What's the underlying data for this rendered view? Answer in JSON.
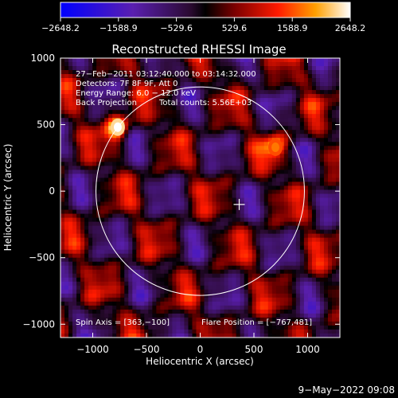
{
  "chart_data": {
    "type": "heatmap",
    "title": "Reconstructed RHESSI Image",
    "xlabel": "Heliocentric X (arcsec)",
    "ylabel": "Heliocentric Y (arcsec)",
    "xlim": [
      -1300,
      1300
    ],
    "ylim": [
      -1100,
      1000
    ],
    "xticks": [
      -1000,
      -500,
      0,
      500,
      1000
    ],
    "yticks": [
      -1000,
      -500,
      0,
      500,
      1000
    ],
    "xtick_labels": [
      "−1000",
      "−500",
      "0",
      "500",
      "1000"
    ],
    "ytick_labels": [
      "−1000",
      "−500",
      "0",
      "500",
      "1000"
    ],
    "colorbar": {
      "min": -2648.2,
      "max": 2648.2,
      "ticks": [
        -2648.2,
        -1588.9,
        -529.6,
        529.6,
        1588.9,
        2648.2
      ],
      "tick_labels": [
        "−2648.2",
        "−1588.9",
        "−529.6",
        "529.6",
        "1588.9",
        "2648.2"
      ],
      "colormap": "blue-purple-black-red-yellow-white"
    },
    "annotations": {
      "line1": "27−Feb−2011 03:12:40.000 to 03:14:32.000",
      "line2": "Detectors: 7F 8F 9F, Att 0",
      "line3": "Energy Range: 6.0 − 12.0 keV",
      "line4a": "Back Projection",
      "line4b": "Total counts: 5.56E+03",
      "spin_axis": "Spin Axis = [363,−100]",
      "flare_position": "Flare Position = [−767,481]"
    },
    "solar_limb": {
      "center": [
        0,
        0
      ],
      "radius_arcsec": 970
    },
    "spin_axis_marker": [
      363,
      -100
    ],
    "bright_sources": [
      {
        "x": -767,
        "y": 481,
        "value": 2648.2
      },
      {
        "x": 700,
        "y": 330,
        "value": 1800
      }
    ]
  },
  "footer": {
    "timestamp": "9−May−2022 09:08"
  },
  "colors": {
    "background": "#000000",
    "foreground": "#ffffff"
  }
}
